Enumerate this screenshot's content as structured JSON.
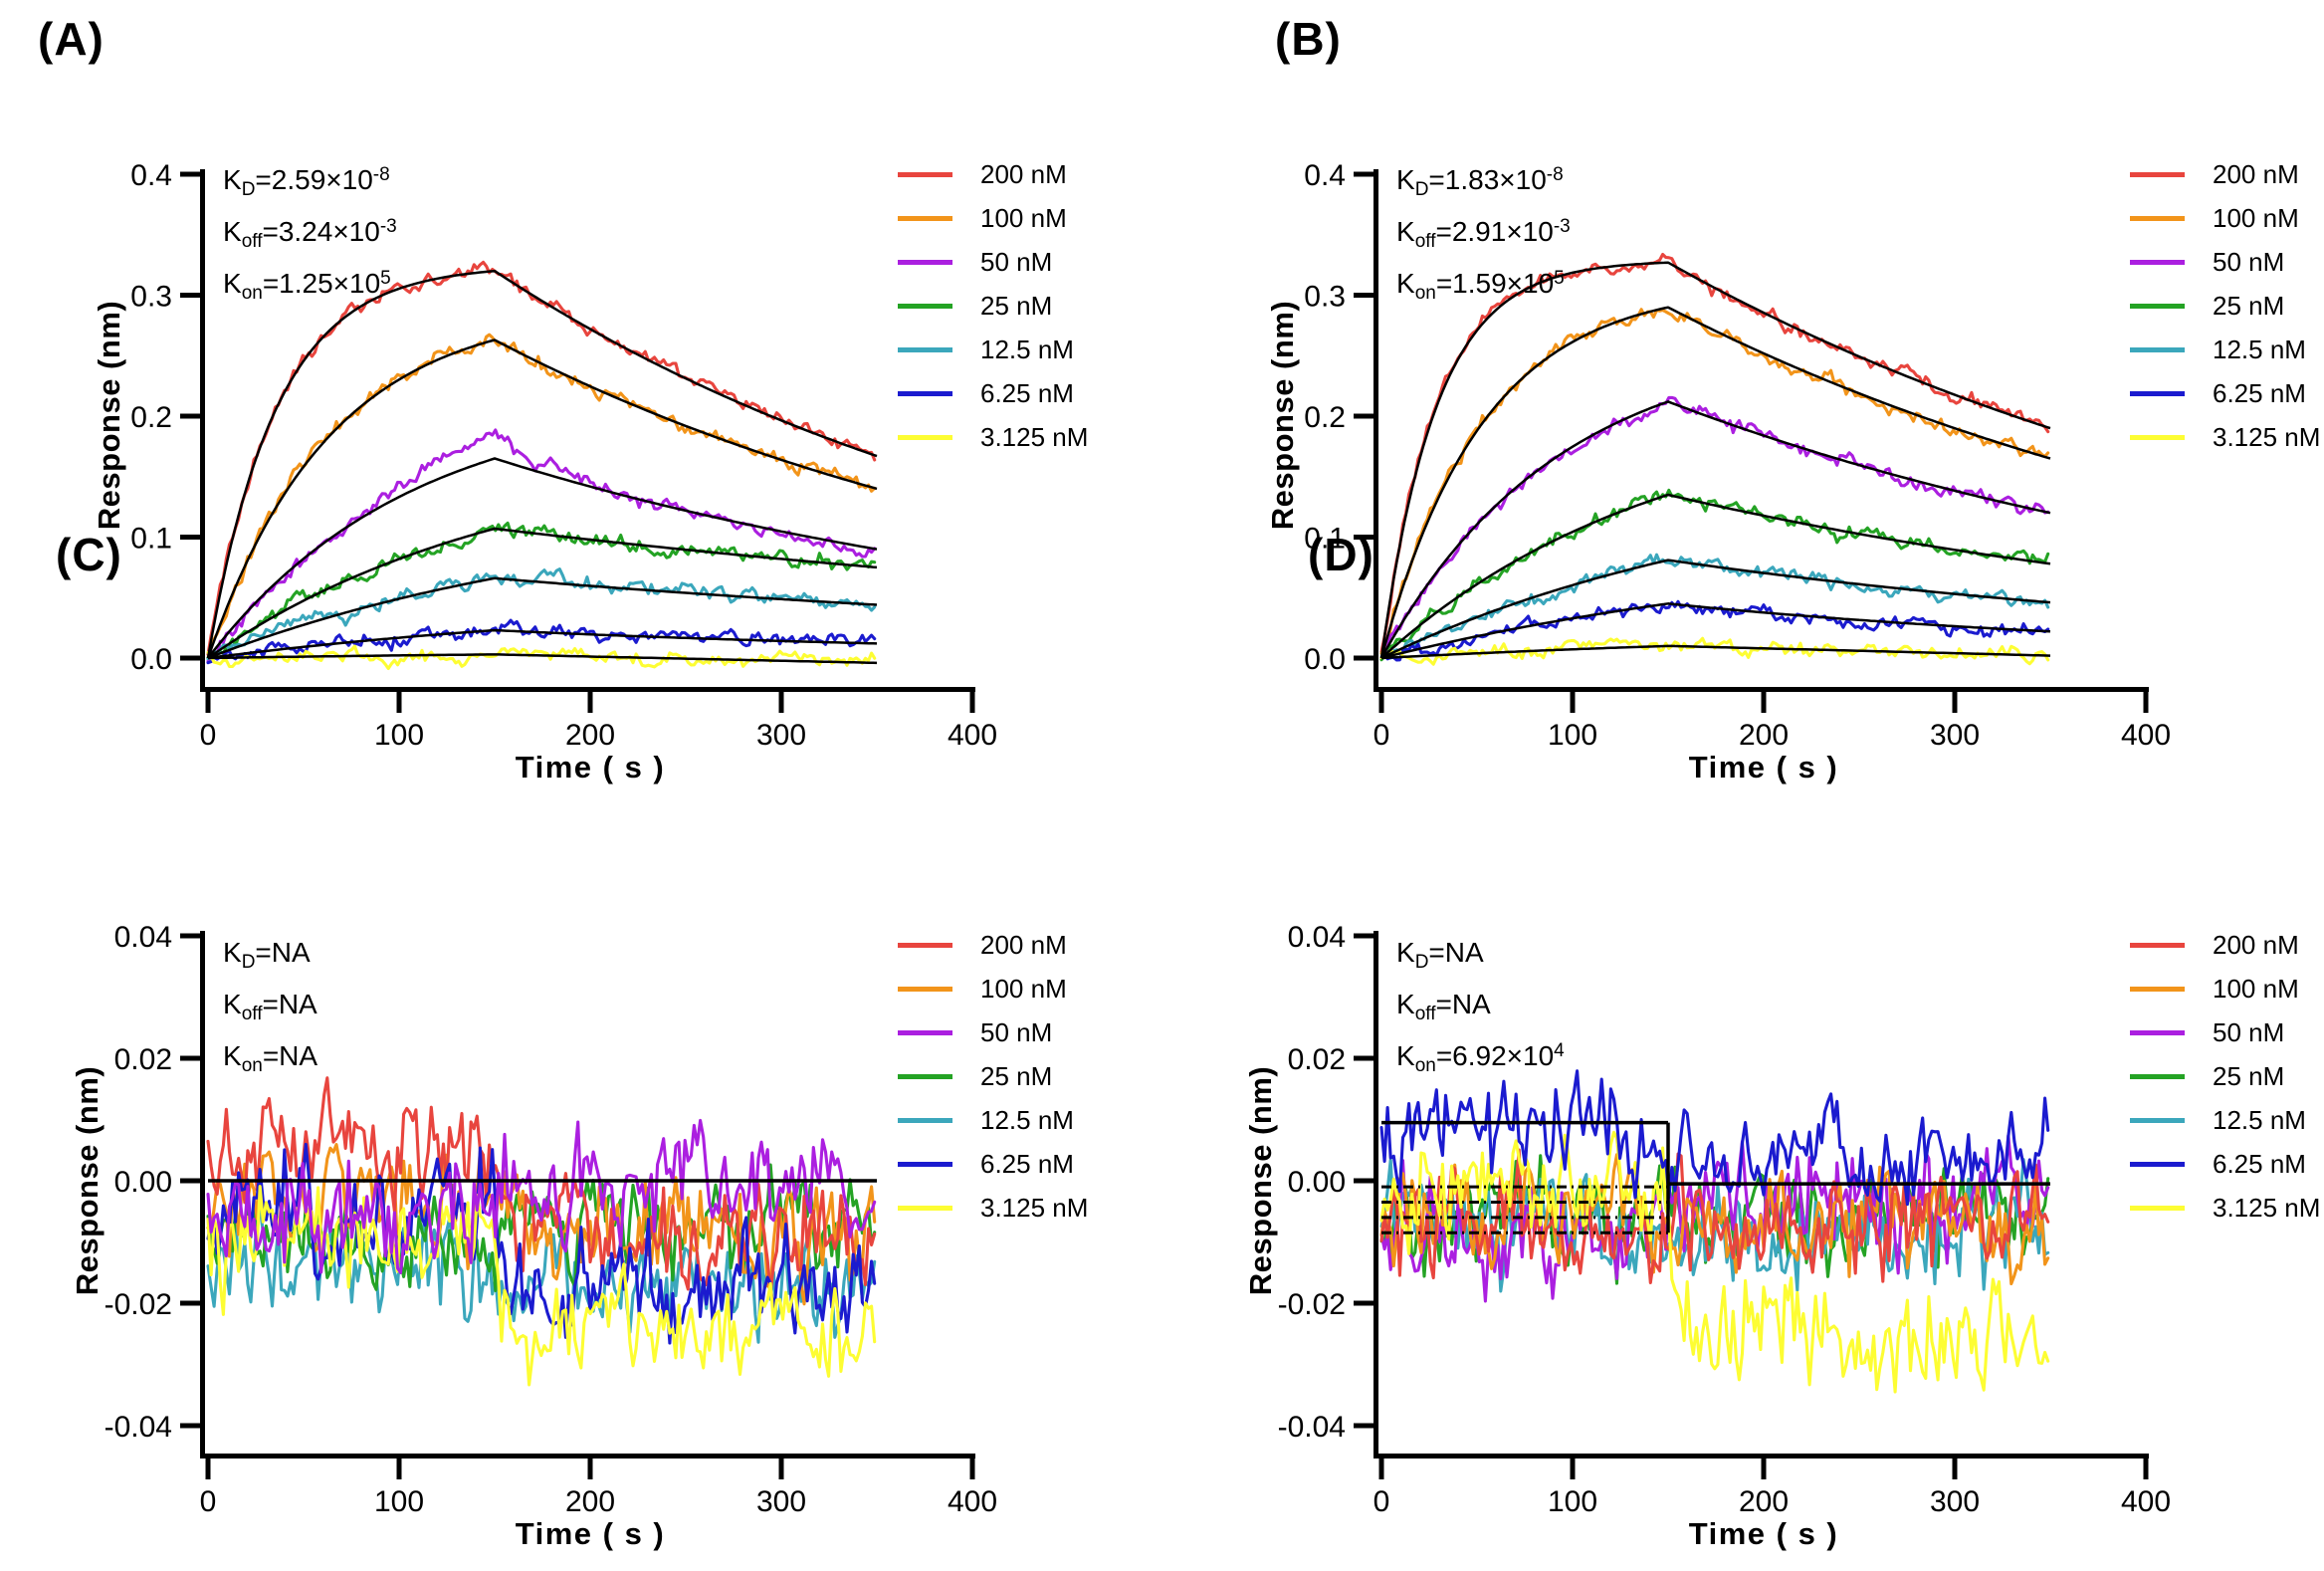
{
  "figure": {
    "background": "#ffffff",
    "axis_color": "#000000",
    "fit_color": "#000000"
  },
  "legend": {
    "entries": [
      {
        "label": "200 nM",
        "color": "#e8453e"
      },
      {
        "label": "100 nM",
        "color": "#f2941a"
      },
      {
        "label": "50 nM",
        "color": "#ab1fe0"
      },
      {
        "label": "25 nM",
        "color": "#24a324"
      },
      {
        "label": "12.5 nM",
        "color": "#3ba7bc"
      },
      {
        "label": "6.25 nM",
        "color": "#1b1bcf"
      },
      {
        "label": "3.125 nM",
        "color": "#fdfd33"
      }
    ]
  },
  "panels": [
    {
      "label": "(A)",
      "xlabel": "Time ( s )",
      "ylabel": "Response (nm)",
      "xticks": [
        "0",
        "100",
        "200",
        "300",
        "400"
      ],
      "yticks": [
        "0.0",
        "0.1",
        "0.2",
        "0.3",
        "0.4"
      ],
      "kinetics_lines": [
        {
          "base": "K",
          "sub": "D",
          "mid": "=2.59×10",
          "sup": "-8"
        },
        {
          "base": "K",
          "sub": "off",
          "mid": "=3.24×10",
          "sup": "-3"
        },
        {
          "base": "K",
          "sub": "on",
          "mid": "=1.25×10",
          "sup": "5"
        }
      ]
    },
    {
      "label": "(B)",
      "xlabel": "Time ( s )",
      "ylabel": "Response (nm)",
      "xticks": [
        "0",
        "100",
        "200",
        "300",
        "400"
      ],
      "yticks": [
        "0.0",
        "0.1",
        "0.2",
        "0.3",
        "0.4"
      ],
      "kinetics_lines": [
        {
          "base": "K",
          "sub": "D",
          "mid": "=1.83×10",
          "sup": "-8"
        },
        {
          "base": "K",
          "sub": "off",
          "mid": "=2.91×10",
          "sup": "-3"
        },
        {
          "base": "K",
          "sub": "on",
          "mid": "=1.59×10",
          "sup": "5"
        }
      ]
    },
    {
      "label": "(C)",
      "xlabel": "Time ( s )",
      "ylabel": "Response (nm)",
      "xticks": [
        "0",
        "100",
        "200",
        "300",
        "400"
      ],
      "yticks": [
        "-0.04",
        "-0.02",
        "0.00",
        "0.02",
        "0.04"
      ],
      "kinetics_lines": [
        {
          "base": "K",
          "sub": "D",
          "mid": "=NA",
          "sup": ""
        },
        {
          "base": "K",
          "sub": "off",
          "mid": "=NA",
          "sup": ""
        },
        {
          "base": "K",
          "sub": "on",
          "mid": "=NA",
          "sup": ""
        }
      ]
    },
    {
      "label": "(D)",
      "xlabel": "Time ( s )",
      "ylabel": "Response (nm)",
      "xticks": [
        "0",
        "100",
        "200",
        "300",
        "400"
      ],
      "yticks": [
        "-0.04",
        "-0.02",
        "0.00",
        "0.02",
        "0.04"
      ],
      "kinetics_lines": [
        {
          "base": "K",
          "sub": "D",
          "mid": "=NA",
          "sup": ""
        },
        {
          "base": "K",
          "sub": "off",
          "mid": "=NA",
          "sup": ""
        },
        {
          "base": "K",
          "sub": "on",
          "mid": "=6.92×10",
          "sup": "4"
        }
      ]
    }
  ],
  "chart_data": [
    {
      "panel": "A",
      "type": "line",
      "subtype": "bli_sensorgram_with_fit",
      "title": "KD=2.59×10-8, Koff=3.24×10-3, Kon=1.25×105",
      "xlabel": "Time ( s )",
      "ylabel": "Response (nm)",
      "xlim": [
        0,
        400
      ],
      "ylim": [
        0.0,
        0.4
      ],
      "x_ticks": [
        0,
        100,
        200,
        300,
        400
      ],
      "y_ticks": [
        0.0,
        0.1,
        0.2,
        0.3,
        0.4
      ],
      "association_end_s": 150,
      "data_end_s": 350,
      "kinetics": {
        "KD": 2.59e-08,
        "Koff": 0.00324,
        "Kon": 125000.0
      },
      "legend_position": "right-top",
      "grid": false,
      "series": [
        {
          "name": "200 nM",
          "conc_nM": 200,
          "color": "#e8453e",
          "peak_nm": 0.32,
          "end_nm": 0.167,
          "overshoot_nm": 0
        },
        {
          "name": "100 nM",
          "conc_nM": 100,
          "color": "#f2941a",
          "peak_nm": 0.263,
          "end_nm": 0.14,
          "overshoot_nm": 0
        },
        {
          "name": "50 nM",
          "conc_nM": 50,
          "color": "#ab1fe0",
          "peak_nm": 0.165,
          "end_nm": 0.09,
          "overshoot_nm": 0.022
        },
        {
          "name": "25 nM",
          "conc_nM": 25,
          "color": "#24a324",
          "peak_nm": 0.107,
          "end_nm": 0.075,
          "overshoot_nm": 0
        },
        {
          "name": "12.5 nM",
          "conc_nM": 12.5,
          "color": "#3ba7bc",
          "peak_nm": 0.066,
          "end_nm": 0.044,
          "overshoot_nm": 0
        },
        {
          "name": "6.25 nM",
          "conc_nM": 6.25,
          "color": "#1b1bcf",
          "peak_nm": 0.023,
          "end_nm": 0.012,
          "overshoot_nm": 0
        },
        {
          "name": "3.125 nM",
          "conc_nM": 3.125,
          "color": "#fdfd33",
          "peak_nm": 0.003,
          "end_nm": -0.004,
          "overshoot_nm": 0
        }
      ]
    },
    {
      "panel": "B",
      "type": "line",
      "subtype": "bli_sensorgram_with_fit",
      "title": "KD=1.83×10-8, Koff=2.91×10-3, Kon=1.59×105",
      "xlabel": "Time ( s )",
      "ylabel": "Response (nm)",
      "xlim": [
        0,
        400
      ],
      "ylim": [
        0.0,
        0.4
      ],
      "x_ticks": [
        0,
        100,
        200,
        300,
        400
      ],
      "y_ticks": [
        0.0,
        0.1,
        0.2,
        0.3,
        0.4
      ],
      "association_end_s": 150,
      "data_end_s": 350,
      "kinetics": {
        "KD": 1.83e-08,
        "Koff": 0.00291,
        "Kon": 159000.0
      },
      "legend_position": "right-top",
      "grid": false,
      "series": [
        {
          "name": "200 nM",
          "conc_nM": 200,
          "color": "#e8453e",
          "peak_nm": 0.327,
          "end_nm": 0.19,
          "overshoot_nm": 0
        },
        {
          "name": "100 nM",
          "conc_nM": 100,
          "color": "#f2941a",
          "peak_nm": 0.29,
          "end_nm": 0.165,
          "overshoot_nm": 0
        },
        {
          "name": "50 nM",
          "conc_nM": 50,
          "color": "#ab1fe0",
          "peak_nm": 0.212,
          "end_nm": 0.12,
          "overshoot_nm": 0
        },
        {
          "name": "25 nM",
          "conc_nM": 25,
          "color": "#24a324",
          "peak_nm": 0.135,
          "end_nm": 0.078,
          "overshoot_nm": 0
        },
        {
          "name": "12.5 nM",
          "conc_nM": 12.5,
          "color": "#3ba7bc",
          "peak_nm": 0.081,
          "end_nm": 0.046,
          "overshoot_nm": 0
        },
        {
          "name": "6.25 nM",
          "conc_nM": 6.25,
          "color": "#1b1bcf",
          "peak_nm": 0.045,
          "end_nm": 0.022,
          "overshoot_nm": 0
        },
        {
          "name": "3.125 nM",
          "conc_nM": 3.125,
          "color": "#fdfd33",
          "peak_nm": 0.01,
          "end_nm": 0.002,
          "overshoot_nm": 0
        }
      ]
    },
    {
      "panel": "C",
      "type": "line",
      "subtype": "baseline_noise",
      "title": "KD=NA, Koff=NA, Kon=NA",
      "xlabel": "Time ( s )",
      "ylabel": "Response (nm)",
      "xlim": [
        0,
        400
      ],
      "ylim": [
        -0.04,
        0.04
      ],
      "x_ticks": [
        0,
        100,
        200,
        300,
        400
      ],
      "y_ticks": [
        -0.04,
        -0.02,
        0.0,
        0.02,
        0.04
      ],
      "association_end_s": 150,
      "data_end_s": 350,
      "kinetics": {
        "KD": "NA",
        "Koff": "NA",
        "Kon": "NA"
      },
      "legend_position": "right-top",
      "grid": false,
      "series": [
        {
          "name": "200 nM",
          "conc_nM": 200,
          "color": "#e8453e",
          "mean_0_150_nm": 0.006,
          "mean_150_350_nm": -0.008,
          "noise_amp_nm": 0.0048
        },
        {
          "name": "100 nM",
          "conc_nM": 100,
          "color": "#f2941a",
          "mean_0_150_nm": -0.003,
          "mean_150_350_nm": -0.009,
          "noise_amp_nm": 0.0048
        },
        {
          "name": "50 nM",
          "conc_nM": 50,
          "color": "#ab1fe0",
          "mean_0_150_nm": -0.006,
          "mean_150_350_nm": 0.0,
          "noise_amp_nm": 0.005
        },
        {
          "name": "25 nM",
          "conc_nM": 25,
          "color": "#24a324",
          "mean_0_150_nm": -0.01,
          "mean_150_350_nm": -0.007,
          "noise_amp_nm": 0.0048
        },
        {
          "name": "12.5 nM",
          "conc_nM": 12.5,
          "color": "#3ba7bc",
          "mean_0_150_nm": -0.013,
          "mean_150_350_nm": -0.016,
          "noise_amp_nm": 0.0048
        },
        {
          "name": "6.25 nM",
          "conc_nM": 6.25,
          "color": "#1b1bcf",
          "mean_0_150_nm": -0.005,
          "mean_150_350_nm": -0.019,
          "noise_amp_nm": 0.005
        },
        {
          "name": "3.125 nM",
          "conc_nM": 3.125,
          "color": "#fdfd33",
          "mean_0_150_nm": -0.009,
          "mean_150_350_nm": -0.025,
          "noise_amp_nm": 0.0052
        }
      ],
      "fit_lines": [
        {
          "x": [
            0,
            350
          ],
          "y": [
            0,
            0
          ],
          "style": "solid"
        }
      ]
    },
    {
      "panel": "D",
      "type": "line",
      "subtype": "baseline_noise",
      "title": "KD=NA, Koff=NA, Kon=6.92×104",
      "xlabel": "Time ( s )",
      "ylabel": "Response (nm)",
      "xlim": [
        0,
        400
      ],
      "ylim": [
        -0.04,
        0.04
      ],
      "x_ticks": [
        0,
        100,
        200,
        300,
        400
      ],
      "y_ticks": [
        -0.04,
        -0.02,
        0.0,
        0.02,
        0.04
      ],
      "association_end_s": 150,
      "data_end_s": 350,
      "kinetics": {
        "KD": "NA",
        "Koff": "NA",
        "Kon": 69200.0
      },
      "legend_position": "right-top",
      "grid": false,
      "series": [
        {
          "name": "200 nM",
          "conc_nM": 200,
          "color": "#e8453e",
          "mean_0_150_nm": -0.007,
          "mean_150_350_nm": -0.006,
          "noise_amp_nm": 0.0052
        },
        {
          "name": "100 nM",
          "conc_nM": 100,
          "color": "#f2941a",
          "mean_0_150_nm": -0.005,
          "mean_150_350_nm": -0.007,
          "noise_amp_nm": 0.0052
        },
        {
          "name": "50 nM",
          "conc_nM": 50,
          "color": "#ab1fe0",
          "mean_0_150_nm": -0.008,
          "mean_150_350_nm": -0.004,
          "noise_amp_nm": 0.0052
        },
        {
          "name": "25 nM",
          "conc_nM": 25,
          "color": "#24a324",
          "mean_0_150_nm": -0.006,
          "mean_150_350_nm": -0.005,
          "noise_amp_nm": 0.0048
        },
        {
          "name": "12.5 nM",
          "conc_nM": 12.5,
          "color": "#3ba7bc",
          "mean_0_150_nm": -0.008,
          "mean_150_350_nm": -0.008,
          "noise_amp_nm": 0.0048
        },
        {
          "name": "6.25 nM",
          "conc_nM": 6.25,
          "color": "#1b1bcf",
          "mean_0_150_nm": 0.009,
          "mean_150_350_nm": 0.005,
          "noise_amp_nm": 0.0048
        },
        {
          "name": "3.125 nM",
          "conc_nM": 3.125,
          "color": "#fdfd33",
          "mean_0_150_nm": -0.001,
          "mean_150_350_nm": -0.024,
          "noise_amp_nm": 0.0055
        }
      ],
      "fit_lines": [
        {
          "x": [
            0,
            150
          ],
          "y": [
            0.0095,
            0.0095
          ],
          "style": "solid"
        },
        {
          "x": [
            150,
            150
          ],
          "y": [
            0.0095,
            -0.0085
          ],
          "style": "solid"
        },
        {
          "x": [
            150,
            350
          ],
          "y": [
            -0.0005,
            -0.0005
          ],
          "style": "solid"
        },
        {
          "x": [
            0,
            150
          ],
          "y": [
            -0.001,
            -0.001
          ],
          "style": "dashdot"
        },
        {
          "x": [
            0,
            150
          ],
          "y": [
            -0.0035,
            -0.0035
          ],
          "style": "dashdot"
        },
        {
          "x": [
            0,
            150
          ],
          "y": [
            -0.006,
            -0.006
          ],
          "style": "dashdot"
        },
        {
          "x": [
            0,
            150
          ],
          "y": [
            -0.0085,
            -0.0085
          ],
          "style": "dashdot"
        }
      ]
    }
  ]
}
